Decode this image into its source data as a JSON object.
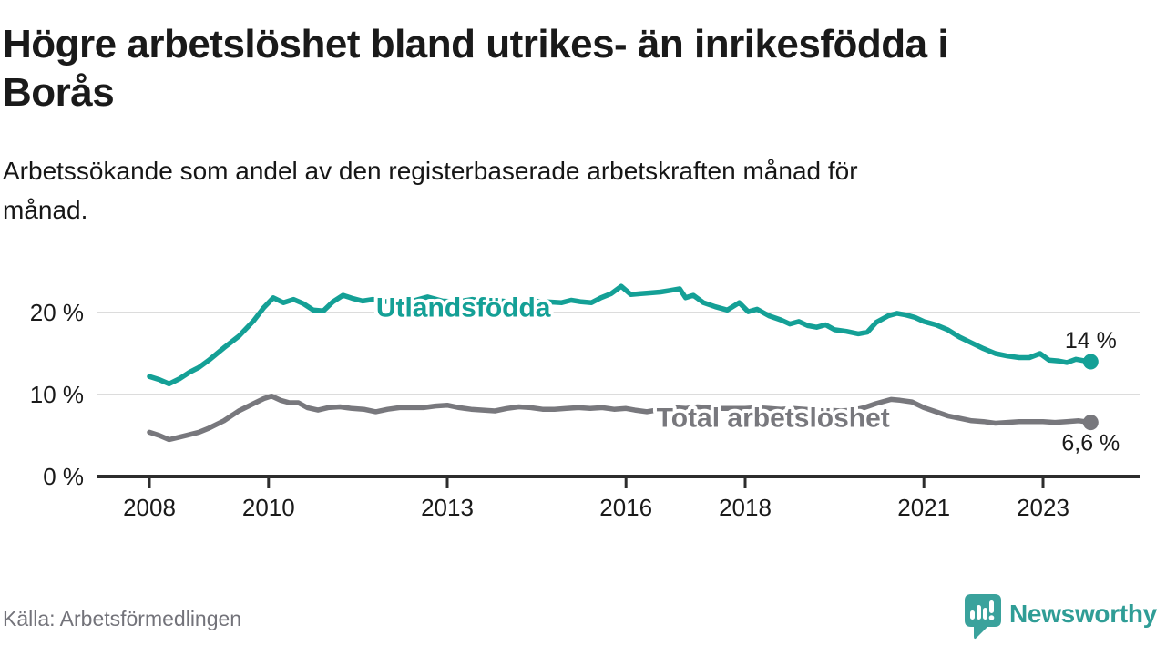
{
  "header": {
    "title_lines": [
      "Högre arbetslöshet bland utrikes- än inrikesfödda i",
      "Borås"
    ],
    "subtitle_lines": [
      "Arbetssökande som andel av den registerbaserade arbetskraften månad för",
      "månad."
    ]
  },
  "footer": {
    "source": "Källa: Arbetsförmedlingen",
    "brand_name": "Newsworthy",
    "brand_icon": "speech-bubble-bar-chart-icon",
    "brand_color": "#3aa29c"
  },
  "chart_data": {
    "type": "line",
    "title": "Högre arbetslöshet bland utrikes- än inrikesfödda i Borås",
    "subtitle": "Arbetssökande som andel av den registerbaserade arbetskraften månad för månad.",
    "grid": "horizontal-only",
    "colors": {
      "grid": "#dcdcdc",
      "axis": "#2d2d2d",
      "text": "#1a1a1a"
    },
    "x_axis": {
      "ticks": [
        2008,
        2010,
        2013,
        2016,
        2018,
        2021,
        2023
      ],
      "range": [
        2007.1,
        2024.6
      ]
    },
    "y_axis": {
      "ticks": [
        0,
        10,
        20
      ],
      "tick_suffix": " %",
      "range": [
        0,
        27
      ]
    },
    "series": [
      {
        "name": "Utlandsfödda",
        "color": "#14a096",
        "label_pos": {
          "year": 2013.27,
          "pct": 20.7
        },
        "end_label": "14 %",
        "end_value": 14.0,
        "end_label_offset": [
          0,
          -15
        ],
        "points": [
          [
            2008.0,
            12.2
          ],
          [
            2008.17,
            11.8
          ],
          [
            2008.33,
            11.3
          ],
          [
            2008.5,
            11.9
          ],
          [
            2008.67,
            12.7
          ],
          [
            2008.83,
            13.3
          ],
          [
            2009.0,
            14.2
          ],
          [
            2009.25,
            15.7
          ],
          [
            2009.5,
            17.1
          ],
          [
            2009.75,
            19.0
          ],
          [
            2009.92,
            20.6
          ],
          [
            2010.08,
            21.8
          ],
          [
            2010.25,
            21.2
          ],
          [
            2010.42,
            21.6
          ],
          [
            2010.58,
            21.1
          ],
          [
            2010.75,
            20.3
          ],
          [
            2010.92,
            20.2
          ],
          [
            2011.08,
            21.3
          ],
          [
            2011.25,
            22.1
          ],
          [
            2011.42,
            21.7
          ],
          [
            2011.58,
            21.4
          ],
          [
            2011.75,
            21.6
          ],
          [
            2011.92,
            21.3
          ],
          [
            2012.17,
            21.5
          ],
          [
            2012.42,
            21.4
          ],
          [
            2012.67,
            21.9
          ],
          [
            2012.92,
            21.4
          ],
          [
            2013.17,
            21.3
          ],
          [
            2013.42,
            21.6
          ],
          [
            2013.67,
            21.3
          ],
          [
            2013.92,
            21.4
          ],
          [
            2014.17,
            21.2
          ],
          [
            2014.42,
            21.4
          ],
          [
            2014.67,
            21.3
          ],
          [
            2014.92,
            21.2
          ],
          [
            2015.08,
            21.5
          ],
          [
            2015.25,
            21.3
          ],
          [
            2015.42,
            21.2
          ],
          [
            2015.58,
            21.8
          ],
          [
            2015.75,
            22.3
          ],
          [
            2015.92,
            23.2
          ],
          [
            2016.08,
            22.2
          ],
          [
            2016.25,
            22.3
          ],
          [
            2016.42,
            22.4
          ],
          [
            2016.58,
            22.5
          ],
          [
            2016.75,
            22.7
          ],
          [
            2016.9,
            22.9
          ],
          [
            2017.0,
            21.8
          ],
          [
            2017.13,
            22.1
          ],
          [
            2017.3,
            21.2
          ],
          [
            2017.5,
            20.7
          ],
          [
            2017.7,
            20.3
          ],
          [
            2017.9,
            21.2
          ],
          [
            2018.05,
            20.1
          ],
          [
            2018.2,
            20.4
          ],
          [
            2018.4,
            19.6
          ],
          [
            2018.6,
            19.1
          ],
          [
            2018.75,
            18.6
          ],
          [
            2018.9,
            18.9
          ],
          [
            2019.05,
            18.4
          ],
          [
            2019.2,
            18.2
          ],
          [
            2019.35,
            18.5
          ],
          [
            2019.5,
            17.9
          ],
          [
            2019.7,
            17.7
          ],
          [
            2019.9,
            17.4
          ],
          [
            2020.05,
            17.6
          ],
          [
            2020.2,
            18.8
          ],
          [
            2020.4,
            19.6
          ],
          [
            2020.55,
            19.9
          ],
          [
            2020.7,
            19.7
          ],
          [
            2020.85,
            19.4
          ],
          [
            2021.0,
            18.9
          ],
          [
            2021.2,
            18.5
          ],
          [
            2021.4,
            17.9
          ],
          [
            2021.6,
            17.0
          ],
          [
            2021.8,
            16.3
          ],
          [
            2022.0,
            15.6
          ],
          [
            2022.2,
            15.0
          ],
          [
            2022.4,
            14.7
          ],
          [
            2022.6,
            14.5
          ],
          [
            2022.77,
            14.5
          ],
          [
            2022.95,
            15.0
          ],
          [
            2023.1,
            14.2
          ],
          [
            2023.25,
            14.1
          ],
          [
            2023.4,
            13.9
          ],
          [
            2023.55,
            14.3
          ],
          [
            2023.7,
            14.1
          ],
          [
            2023.8,
            14.0
          ]
        ]
      },
      {
        "name": "Total arbetslöshet",
        "color": "#78787d",
        "label_pos": {
          "year": 2018.47,
          "pct": 7.3
        },
        "end_label": "6,6 %",
        "end_value": 6.6,
        "end_label_offset": [
          0,
          31
        ],
        "points": [
          [
            2008.0,
            5.4
          ],
          [
            2008.17,
            5.0
          ],
          [
            2008.33,
            4.5
          ],
          [
            2008.5,
            4.8
          ],
          [
            2008.67,
            5.1
          ],
          [
            2008.83,
            5.4
          ],
          [
            2009.0,
            5.9
          ],
          [
            2009.25,
            6.8
          ],
          [
            2009.5,
            8.0
          ],
          [
            2009.75,
            8.9
          ],
          [
            2009.92,
            9.5
          ],
          [
            2010.05,
            9.8
          ],
          [
            2010.2,
            9.3
          ],
          [
            2010.35,
            9.0
          ],
          [
            2010.5,
            9.0
          ],
          [
            2010.65,
            8.4
          ],
          [
            2010.83,
            8.1
          ],
          [
            2011.0,
            8.4
          ],
          [
            2011.2,
            8.5
          ],
          [
            2011.4,
            8.3
          ],
          [
            2011.6,
            8.2
          ],
          [
            2011.8,
            7.9
          ],
          [
            2012.0,
            8.2
          ],
          [
            2012.2,
            8.4
          ],
          [
            2012.4,
            8.4
          ],
          [
            2012.6,
            8.4
          ],
          [
            2012.8,
            8.6
          ],
          [
            2013.0,
            8.7
          ],
          [
            2013.2,
            8.4
          ],
          [
            2013.4,
            8.2
          ],
          [
            2013.6,
            8.1
          ],
          [
            2013.8,
            8.0
          ],
          [
            2014.0,
            8.3
          ],
          [
            2014.2,
            8.5
          ],
          [
            2014.4,
            8.4
          ],
          [
            2014.6,
            8.2
          ],
          [
            2014.8,
            8.2
          ],
          [
            2015.0,
            8.3
          ],
          [
            2015.2,
            8.4
          ],
          [
            2015.4,
            8.3
          ],
          [
            2015.6,
            8.4
          ],
          [
            2015.8,
            8.2
          ],
          [
            2016.0,
            8.3
          ],
          [
            2016.15,
            8.1
          ],
          [
            2016.35,
            7.9
          ],
          [
            2016.6,
            8.2
          ],
          [
            2016.8,
            8.4
          ],
          [
            2017.0,
            8.3
          ],
          [
            2017.2,
            8.5
          ],
          [
            2017.4,
            8.4
          ],
          [
            2017.6,
            8.3
          ],
          [
            2017.8,
            8.3
          ],
          [
            2018.0,
            8.3
          ],
          [
            2018.2,
            8.4
          ],
          [
            2018.4,
            8.3
          ],
          [
            2018.6,
            8.2
          ],
          [
            2018.8,
            8.3
          ],
          [
            2019.0,
            8.2
          ],
          [
            2019.2,
            8.1
          ],
          [
            2019.4,
            8.1
          ],
          [
            2019.6,
            8.0
          ],
          [
            2019.8,
            8.1
          ],
          [
            2020.0,
            8.4
          ],
          [
            2020.2,
            8.9
          ],
          [
            2020.45,
            9.4
          ],
          [
            2020.6,
            9.3
          ],
          [
            2020.8,
            9.1
          ],
          [
            2021.0,
            8.4
          ],
          [
            2021.2,
            7.9
          ],
          [
            2021.4,
            7.4
          ],
          [
            2021.6,
            7.1
          ],
          [
            2021.8,
            6.8
          ],
          [
            2022.0,
            6.7
          ],
          [
            2022.2,
            6.5
          ],
          [
            2022.4,
            6.6
          ],
          [
            2022.6,
            6.7
          ],
          [
            2022.8,
            6.7
          ],
          [
            2023.0,
            6.7
          ],
          [
            2023.2,
            6.6
          ],
          [
            2023.4,
            6.7
          ],
          [
            2023.6,
            6.8
          ],
          [
            2023.8,
            6.6
          ]
        ]
      }
    ],
    "legend_position": "inline-on-lines",
    "end_markers": "dot"
  }
}
